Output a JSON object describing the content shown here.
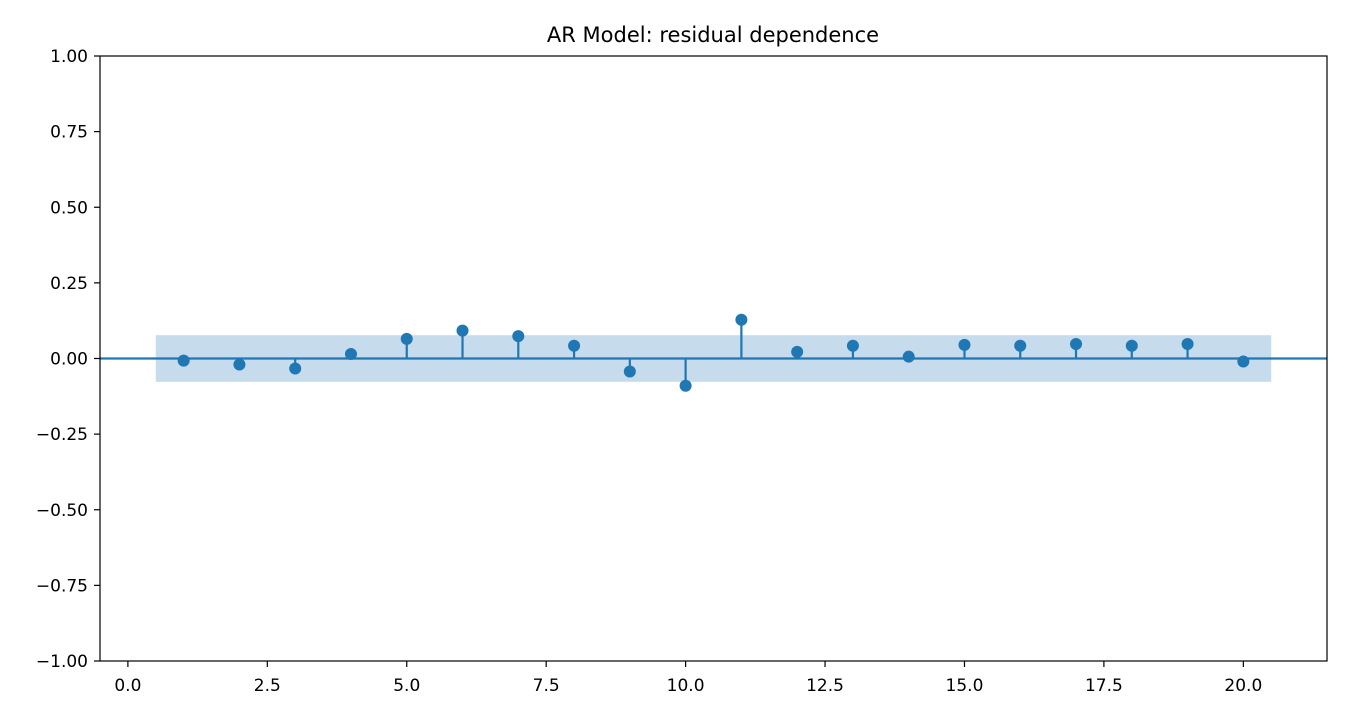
{
  "chart_data": {
    "type": "stem",
    "title": "AR Model: residual dependence",
    "xlabel": "",
    "ylabel": "",
    "xlim": [
      -0.5,
      21.5
    ],
    "ylim": [
      -1.0,
      1.0
    ],
    "x_ticks": [
      0.0,
      2.5,
      5.0,
      7.5,
      10.0,
      12.5,
      15.0,
      17.5,
      20.0
    ],
    "x_tick_labels": [
      "0.0",
      "2.5",
      "5.0",
      "7.5",
      "10.0",
      "12.5",
      "15.0",
      "17.5",
      "20.0"
    ],
    "y_ticks": [
      1.0,
      0.75,
      0.5,
      0.25,
      0.0,
      -0.25,
      -0.5,
      -0.75,
      -1.0
    ],
    "y_tick_labels": [
      "1.00",
      "0.75",
      "0.50",
      "0.25",
      "0.00",
      "−0.25",
      "−0.50",
      "−0.75",
      "−1.00"
    ],
    "grid": false,
    "series": [
      {
        "lags": [
          1,
          2,
          3,
          4,
          5,
          6,
          7,
          8,
          9,
          10,
          11,
          12,
          13,
          14,
          15,
          16,
          17,
          18,
          19,
          20
        ],
        "values": [
          -0.007,
          -0.02,
          -0.033,
          0.015,
          0.065,
          0.092,
          0.074,
          0.042,
          -0.043,
          -0.09,
          0.128,
          0.022,
          0.042,
          0.006,
          0.045,
          0.042,
          0.048,
          0.042,
          0.048,
          -0.01
        ]
      }
    ],
    "confidence_band": {
      "x_range": [
        0.5,
        20.5
      ],
      "lower": -0.077,
      "upper": 0.077
    },
    "colors": {
      "series": "#1f77b4",
      "band": "#c6dbec",
      "axes": "#000000"
    }
  }
}
